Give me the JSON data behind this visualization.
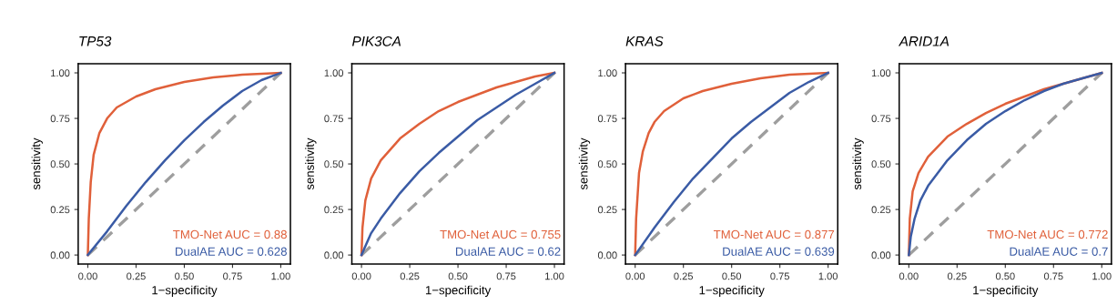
{
  "chart_data": [
    {
      "type": "line",
      "title": "TP53",
      "xlabel": "1−specificity",
      "ylabel": "sensitivity",
      "xlim": [
        -0.05,
        1.05
      ],
      "ylim": [
        -0.05,
        1.05
      ],
      "xticks": [
        {
          "value": 0,
          "label": "0.00"
        },
        {
          "value": 0.25,
          "label": "0.25"
        },
        {
          "value": 0.5,
          "label": "0.50"
        },
        {
          "value": 0.75,
          "label": "0.75"
        },
        {
          "value": 1,
          "label": "1.00"
        }
      ],
      "yticks": [
        {
          "value": 0,
          "label": "0.00"
        },
        {
          "value": 0.25,
          "label": "0.25"
        },
        {
          "value": 0.5,
          "label": "0.50"
        },
        {
          "value": 0.75,
          "label": "0.75"
        },
        {
          "value": 1,
          "label": "1.00"
        }
      ],
      "grid": false,
      "series": [
        {
          "color": "#9e9e9e",
          "line_style": "dashed",
          "x": [
            0,
            1
          ],
          "values": [
            0,
            1
          ]
        },
        {
          "color": "#e0603a",
          "x": [
            0,
            0.005,
            0.015,
            0.03,
            0.06,
            0.1,
            0.15,
            0.25,
            0.35,
            0.5,
            0.65,
            0.8,
            1
          ],
          "values": [
            0,
            0.2,
            0.4,
            0.55,
            0.67,
            0.75,
            0.81,
            0.87,
            0.91,
            0.95,
            0.975,
            0.99,
            1
          ]
        },
        {
          "color": "#3a5ba5",
          "x": [
            0,
            0.1,
            0.2,
            0.3,
            0.4,
            0.5,
            0.6,
            0.7,
            0.8,
            0.9,
            1
          ],
          "values": [
            0,
            0.13,
            0.27,
            0.4,
            0.52,
            0.63,
            0.73,
            0.82,
            0.9,
            0.96,
            1
          ]
        }
      ],
      "annotations": [
        "TMO-Net AUC = 0.88",
        "DualAE AUC = 0.628"
      ]
    },
    {
      "type": "line",
      "title": "PIK3CA",
      "xlabel": "1−specificity",
      "ylabel": "sensitivity",
      "xlim": [
        -0.05,
        1.05
      ],
      "ylim": [
        -0.05,
        1.05
      ],
      "xticks": [
        {
          "value": 0,
          "label": "0.00"
        },
        {
          "value": 0.25,
          "label": "0.25"
        },
        {
          "value": 0.5,
          "label": "0.50"
        },
        {
          "value": 0.75,
          "label": "0.75"
        },
        {
          "value": 1,
          "label": "1.00"
        }
      ],
      "yticks": [
        {
          "value": 0,
          "label": "0.00"
        },
        {
          "value": 0.25,
          "label": "0.25"
        },
        {
          "value": 0.5,
          "label": "0.50"
        },
        {
          "value": 0.75,
          "label": "0.75"
        },
        {
          "value": 1,
          "label": "1.00"
        }
      ],
      "grid": false,
      "series": [
        {
          "color": "#9e9e9e",
          "line_style": "dashed",
          "x": [
            0,
            1
          ],
          "values": [
            0,
            1
          ]
        },
        {
          "color": "#e0603a",
          "x": [
            0,
            0.005,
            0.02,
            0.05,
            0.1,
            0.2,
            0.3,
            0.4,
            0.5,
            0.6,
            0.7,
            0.8,
            0.9,
            1
          ],
          "values": [
            0,
            0.15,
            0.3,
            0.42,
            0.52,
            0.64,
            0.72,
            0.79,
            0.84,
            0.88,
            0.92,
            0.95,
            0.98,
            1
          ]
        },
        {
          "color": "#3a5ba5",
          "x": [
            0,
            0.05,
            0.1,
            0.2,
            0.3,
            0.4,
            0.5,
            0.6,
            0.7,
            0.8,
            0.9,
            1
          ],
          "values": [
            0,
            0.12,
            0.2,
            0.34,
            0.46,
            0.56,
            0.65,
            0.74,
            0.81,
            0.88,
            0.94,
            1
          ]
        }
      ],
      "annotations": [
        "TMO-Net AUC = 0.755",
        "DualAE AUC = 0.62"
      ]
    },
    {
      "type": "line",
      "title": "KRAS",
      "xlabel": "1−specificity",
      "ylabel": "sensitivity",
      "xlim": [
        -0.05,
        1.05
      ],
      "ylim": [
        -0.05,
        1.05
      ],
      "xticks": [
        {
          "value": 0,
          "label": "0.00"
        },
        {
          "value": 0.25,
          "label": "0.25"
        },
        {
          "value": 0.5,
          "label": "0.50"
        },
        {
          "value": 0.75,
          "label": "0.75"
        },
        {
          "value": 1,
          "label": "1.00"
        }
      ],
      "yticks": [
        {
          "value": 0,
          "label": "0.00"
        },
        {
          "value": 0.25,
          "label": "0.25"
        },
        {
          "value": 0.5,
          "label": "0.50"
        },
        {
          "value": 0.75,
          "label": "0.75"
        },
        {
          "value": 1,
          "label": "1.00"
        }
      ],
      "grid": false,
      "series": [
        {
          "color": "#9e9e9e",
          "line_style": "dashed",
          "x": [
            0,
            1
          ],
          "values": [
            0,
            1
          ]
        },
        {
          "color": "#e0603a",
          "x": [
            0,
            0.005,
            0.02,
            0.04,
            0.07,
            0.1,
            0.15,
            0.25,
            0.35,
            0.5,
            0.65,
            0.8,
            1
          ],
          "values": [
            0,
            0.2,
            0.45,
            0.57,
            0.67,
            0.73,
            0.79,
            0.86,
            0.9,
            0.94,
            0.97,
            0.99,
            1
          ]
        },
        {
          "color": "#3a5ba5",
          "x": [
            0,
            0.1,
            0.2,
            0.3,
            0.4,
            0.5,
            0.6,
            0.7,
            0.8,
            0.9,
            1
          ],
          "values": [
            0,
            0.15,
            0.29,
            0.42,
            0.53,
            0.64,
            0.73,
            0.81,
            0.89,
            0.95,
            1
          ]
        }
      ],
      "annotations": [
        "TMO-Net AUC = 0.877",
        "DualAE AUC = 0.639"
      ]
    },
    {
      "type": "line",
      "title": "ARID1A",
      "xlabel": "1−specificity",
      "ylabel": "sensitivity",
      "xlim": [
        -0.05,
        1.05
      ],
      "ylim": [
        -0.05,
        1.05
      ],
      "xticks": [
        {
          "value": 0,
          "label": "0.00"
        },
        {
          "value": 0.25,
          "label": "0.25"
        },
        {
          "value": 0.5,
          "label": "0.50"
        },
        {
          "value": 0.75,
          "label": "0.75"
        },
        {
          "value": 1,
          "label": "1.00"
        }
      ],
      "yticks": [
        {
          "value": 0,
          "label": "0.00"
        },
        {
          "value": 0.25,
          "label": "0.25"
        },
        {
          "value": 0.5,
          "label": "0.50"
        },
        {
          "value": 0.75,
          "label": "0.75"
        },
        {
          "value": 1,
          "label": "1.00"
        }
      ],
      "grid": false,
      "series": [
        {
          "color": "#9e9e9e",
          "line_style": "dashed",
          "x": [
            0,
            1
          ],
          "values": [
            0,
            1
          ]
        },
        {
          "color": "#e0603a",
          "x": [
            0,
            0.005,
            0.02,
            0.05,
            0.1,
            0.2,
            0.3,
            0.4,
            0.5,
            0.6,
            0.7,
            0.8,
            0.9,
            1
          ],
          "values": [
            0,
            0.2,
            0.35,
            0.45,
            0.54,
            0.65,
            0.72,
            0.78,
            0.83,
            0.87,
            0.91,
            0.94,
            0.97,
            1
          ]
        },
        {
          "color": "#3a5ba5",
          "x": [
            0,
            0.01,
            0.03,
            0.06,
            0.1,
            0.2,
            0.3,
            0.4,
            0.5,
            0.6,
            0.7,
            0.8,
            0.9,
            1
          ],
          "values": [
            0,
            0.1,
            0.2,
            0.3,
            0.38,
            0.52,
            0.63,
            0.72,
            0.79,
            0.85,
            0.9,
            0.94,
            0.97,
            1
          ]
        }
      ],
      "annotations": [
        "TMO-Net AUC = 0.772",
        "DualAE AUC = 0.7"
      ]
    }
  ]
}
